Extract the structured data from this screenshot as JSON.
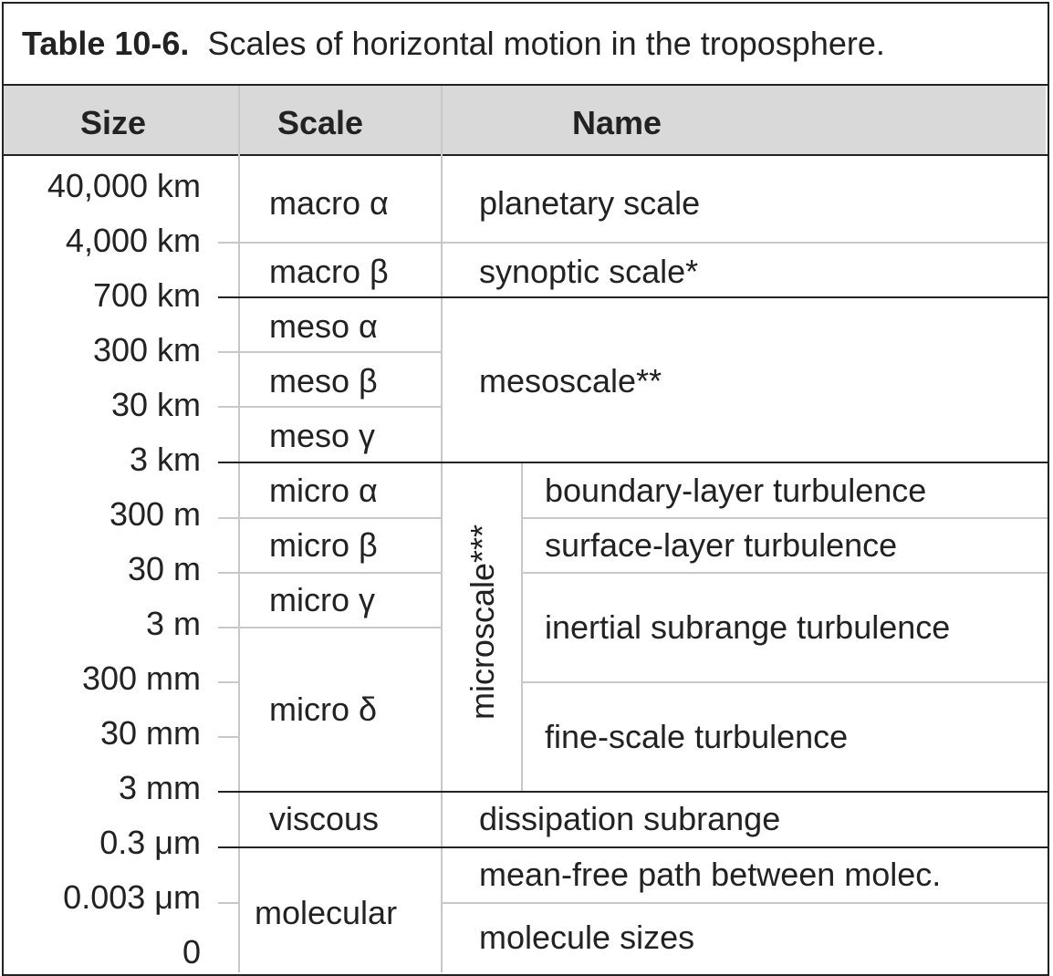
{
  "title": {
    "label": "Table 10-6.",
    "text": "Scales of horizontal motion in the troposphere."
  },
  "headers": {
    "size": "Size",
    "scale": "Scale",
    "name": "Name"
  },
  "sizes": [
    "40,000 km",
    "4,000 km",
    "700 km",
    "300 km",
    "30 km",
    "3 km",
    "300 m",
    "30 m",
    "3 m",
    "300 mm",
    "30 mm",
    "3 mm",
    "0.3 μm",
    "0.003 μm",
    "0"
  ],
  "scales": [
    "macro α",
    "macro β",
    "meso α",
    "meso β",
    "meso γ",
    "micro α",
    "micro β",
    "micro γ",
    "micro δ",
    "viscous",
    "molecular"
  ],
  "names": {
    "planetary": "planetary scale",
    "synoptic": "synoptic scale*",
    "mesoscale": "mesoscale**",
    "microscale": "microscale***",
    "boundary": "boundary-layer turbulence",
    "surface": "surface-layer turbulence",
    "inertial": "inertial subrange turbulence",
    "fine": "fine-scale turbulence",
    "dissipation": "dissipation subrange",
    "mean_free": "mean-free path between molec.",
    "molecule": "molecule sizes"
  }
}
